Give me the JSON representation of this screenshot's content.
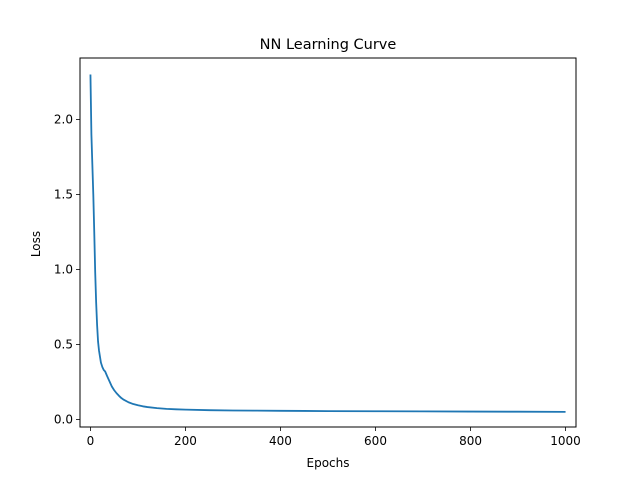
{
  "chart_data": {
    "type": "line",
    "title": "NN Learning Curve",
    "xlabel": "Epochs",
    "ylabel": "Loss",
    "xlim": [
      -22,
      1022
    ],
    "ylim": [
      -0.05,
      2.41
    ],
    "xticks": [
      0,
      200,
      400,
      600,
      800,
      1000
    ],
    "xtick_labels": [
      "0",
      "200",
      "400",
      "600",
      "800",
      "1000"
    ],
    "yticks": [
      0.0,
      0.5,
      1.0,
      1.5,
      2.0
    ],
    "ytick_labels": [
      "0.0",
      "0.5",
      "1.0",
      "1.5",
      "2.0"
    ],
    "grid": false,
    "series_color": "#1f77b4",
    "series": [
      {
        "x": [
          0,
          2,
          4,
          6,
          8,
          10,
          12,
          14,
          16,
          18,
          20,
          22,
          25,
          28,
          31,
          35,
          40,
          45,
          50,
          55,
          60,
          65,
          70,
          80,
          90,
          100,
          110,
          120,
          140,
          160,
          180,
          200,
          250,
          300,
          350,
          400,
          450,
          500,
          600,
          700,
          800,
          900,
          1000
        ],
        "y": [
          2.3,
          1.9,
          1.7,
          1.5,
          1.25,
          0.98,
          0.78,
          0.63,
          0.52,
          0.46,
          0.42,
          0.38,
          0.35,
          0.33,
          0.32,
          0.29,
          0.255,
          0.22,
          0.195,
          0.175,
          0.158,
          0.143,
          0.132,
          0.115,
          0.103,
          0.095,
          0.088,
          0.083,
          0.076,
          0.071,
          0.068,
          0.066,
          0.062,
          0.06,
          0.059,
          0.058,
          0.057,
          0.056,
          0.055,
          0.054,
          0.053,
          0.052,
          0.051
        ]
      }
    ]
  }
}
